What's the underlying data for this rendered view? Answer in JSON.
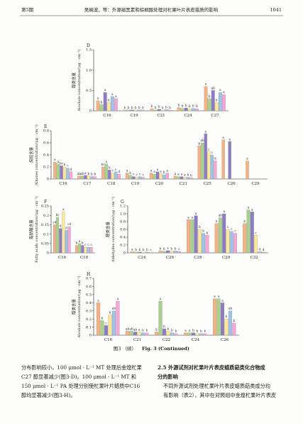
{
  "header": {
    "left": "第5期",
    "center": "吴娴波，等：外源褪黑素和棕榈酸处理对杧果叶片表皮蜡质的影响",
    "right": "1041"
  },
  "chart_data": [
    {
      "type": "bar",
      "panel": "D",
      "ylabel_cn": "醇类含量",
      "ylabel_en": "Alcohols concentration/(μg · cm⁻²)",
      "categories": [
        "C16",
        "C19",
        "C21",
        "C24",
        "C27"
      ],
      "ylim": [
        0,
        1.5
      ],
      "yticks": [
        0,
        0.5,
        {
          "value": 1,
          "label": "1.0"
        },
        1.5
      ],
      "series": [
        {
          "color": "#f4b183",
          "values": [
            0.25,
            0.02,
            0.05,
            0.08,
            0.6
          ],
          "labels": [
            "a",
            "b",
            "b",
            "b",
            "a"
          ]
        },
        {
          "color": "#a9d18e",
          "values": [
            0.15,
            0.02,
            0.02,
            0.06,
            0.3
          ],
          "labels": [
            "b",
            "b",
            "b",
            "b",
            "b"
          ]
        },
        {
          "color": "#8e7cc3",
          "values": [
            0.45,
            0.02,
            0.04,
            0.07,
            0.5
          ],
          "labels": [
            "a",
            "b",
            "b",
            "b",
            "ab"
          ]
        },
        {
          "color": "#ffe699",
          "values": [
            0.2,
            0.02,
            0.02,
            0.05,
            0.2
          ],
          "labels": [
            "b",
            "b",
            "b",
            "b",
            "b"
          ]
        },
        {
          "color": "#9dc3e6",
          "values": [
            0.35,
            0.02,
            0.03,
            0.06,
            0.45
          ],
          "labels": [
            "a",
            "b",
            "b",
            "b",
            "a"
          ]
        },
        {
          "color": "#f4a6d7",
          "values": [
            0.3,
            0.02,
            0.02,
            0.05,
            0.4
          ],
          "labels": [
            "a",
            "b",
            "b",
            "b",
            "a"
          ]
        }
      ]
    },
    {
      "type": "bar",
      "panel": "E",
      "ylabel_cn": "烷烃含量",
      "ylabel_en": "Alkanes concentration/(μg · cm⁻²)",
      "categories": [
        "C16",
        "C17",
        "C18",
        "C19",
        "C20",
        "C21",
        "C25",
        "C26",
        "C29"
      ],
      "ylim": [
        0,
        0.8
      ],
      "yticks": [
        0,
        0.2,
        0.4,
        0.6,
        0.8
      ],
      "series": [
        {
          "color": "#f4b183",
          "values": [
            0.28,
            0.05,
            0.2,
            0.1,
            0.1,
            0.05,
            0.55,
            0.65,
            0.3
          ],
          "labels": [
            "a",
            "ab",
            "bc",
            "a",
            "a",
            "a",
            "b",
            "a",
            "a"
          ]
        },
        {
          "color": "#a9d18e",
          "values": [
            0.25,
            0.05,
            0.25,
            0.06,
            0.08,
            0.04,
            0.6,
            0,
            0
          ],
          "labels": [
            "a",
            "ab",
            "a",
            "b",
            "a",
            "a",
            "ab",
            null,
            null
          ]
        },
        {
          "color": "#8e7cc3",
          "values": [
            0.22,
            0.06,
            0.15,
            0.04,
            0.12,
            0.04,
            0.75,
            0.62,
            0
          ],
          "labels": [
            "bc",
            "a",
            "b",
            "c",
            "a",
            "a",
            "a",
            "a",
            null
          ]
        },
        {
          "color": "#ffe699",
          "values": [
            0.2,
            0.05,
            0.1,
            0.03,
            0.09,
            0.03,
            0.45,
            0,
            0
          ],
          "labels": [
            "b",
            "b",
            "c",
            "c",
            "a",
            "a",
            "c",
            null,
            null
          ]
        },
        {
          "color": "#9dc3e6",
          "values": [
            0.18,
            0.04,
            0.12,
            0.04,
            0.07,
            0.03,
            0.4,
            0,
            0
          ],
          "labels": [
            "c",
            "b",
            "c",
            "c",
            "b",
            "b",
            "c",
            null,
            null
          ]
        },
        {
          "color": "#f4a6d7",
          "values": [
            0.12,
            0.04,
            0.08,
            0.03,
            0.1,
            0.02,
            0.3,
            0,
            0
          ],
          "labels": [
            "d",
            "b",
            "d",
            "c",
            "a",
            "b",
            "d",
            null,
            null
          ]
        }
      ]
    },
    {
      "type": "bar",
      "panel": "F",
      "ylabel_cn": "脂肪酸含量",
      "ylabel_en": "Fatty acids concentration/(μg · cm⁻²)",
      "categories": [
        "C16",
        "C18"
      ],
      "ylim": [
        0,
        0.25
      ],
      "yticks": [
        0,
        0.05,
        0.1,
        0.15,
        0.2,
        0.25
      ],
      "series": [
        {
          "color": "#f4b183",
          "values": [
            0.15,
            0.04
          ],
          "labels": [
            "cd",
            "b"
          ]
        },
        {
          "color": "#a9d18e",
          "values": [
            0.19,
            0.05
          ],
          "labels": [
            "bc",
            "a"
          ]
        },
        {
          "color": "#8e7cc3",
          "values": [
            0.13,
            0.04
          ],
          "labels": [
            "d",
            "b"
          ]
        },
        {
          "color": "#ffe699",
          "values": [
            0.22,
            0.03
          ],
          "labels": [
            "a",
            "c"
          ]
        },
        {
          "color": "#9dc3e6",
          "values": [
            0.12,
            0.03
          ],
          "labels": [
            "d",
            "c"
          ]
        },
        {
          "color": "#f4a6d7",
          "values": [
            0.14,
            0.03
          ],
          "labels": [
            "cd",
            "c"
          ]
        }
      ]
    },
    {
      "type": "bar",
      "panel": "G",
      "ylabel_cn": "醛类含量",
      "ylabel_en": "Aldehydes concentration/(μg · cm⁻²)",
      "categories": [
        "C24",
        "C26",
        "C28",
        "C29",
        "C32"
      ],
      "ylim": [
        0,
        1.2
      ],
      "yticks": [
        0,
        0.2,
        0.4,
        0.6,
        0.8,
        {
          "value": 1,
          "label": "1.0"
        },
        1.2
      ],
      "series": [
        {
          "color": "#f4b183",
          "values": [
            0.03,
            0.05,
            0.85,
            0.75,
            0.75
          ],
          "labels": [
            "a",
            "b",
            "a",
            "b",
            "b"
          ]
        },
        {
          "color": "#a9d18e",
          "values": [
            0.02,
            0.04,
            0.85,
            0.9,
            1.1
          ],
          "labels": [
            "b",
            "b",
            "a",
            "ab",
            "a"
          ]
        },
        {
          "color": "#8e7cc3",
          "values": [
            0.02,
            0.06,
            0.95,
            1.0,
            1.05
          ],
          "labels": [
            "b",
            "a",
            "a",
            "a",
            "a"
          ]
        },
        {
          "color": "#ffe699",
          "values": [
            0.02,
            0.05,
            0.6,
            0.6,
            0.45
          ],
          "labels": [
            "b",
            "b",
            "b",
            "c",
            "c"
          ]
        },
        {
          "color": "#9dc3e6",
          "values": [
            0.02,
            0.05,
            0.5,
            0.55,
            0.03
          ],
          "labels": [
            "b",
            "b",
            "b",
            "c",
            "d"
          ]
        },
        {
          "color": "#f4a6d7",
          "values": [
            0.01,
            0.04,
            0.45,
            0.5,
            0.02
          ],
          "labels": [
            "c",
            "c",
            "b",
            "c",
            "d"
          ]
        }
      ]
    },
    {
      "type": "bar",
      "panel": "H",
      "ylabel_cn": "醇类含量",
      "ylabel_en": "Alcohols concentration/(μg · cm⁻²)",
      "categories": [
        "C16",
        "C21",
        "C22",
        "C24",
        "C26"
      ],
      "ylim": [
        0,
        0.7
      ],
      "yticks": [
        0,
        0.1,
        0.2,
        0.3,
        0.4,
        0.5,
        0.6,
        0.7
      ],
      "series": [
        {
          "color": "#f4b183",
          "values": [
            0.4,
            0.05,
            0.04,
            0.03,
            0.45
          ],
          "labels": [
            "a",
            "ab",
            "b",
            "a",
            "a"
          ]
        },
        {
          "color": "#a9d18e",
          "values": [
            0.18,
            0.05,
            0.42,
            0.03,
            0.45
          ],
          "labels": [
            "b",
            "ab",
            "a",
            "a",
            "a"
          ]
        },
        {
          "color": "#8e7cc3",
          "values": [
            0.12,
            0.04,
            0.08,
            0.03,
            0.4
          ],
          "labels": [
            "c",
            "ab",
            "b",
            "b",
            "a"
          ]
        },
        {
          "color": "#ffe699",
          "values": [
            0.25,
            0.04,
            0.05,
            0.02,
            0.2
          ],
          "labels": [
            "b",
            "a",
            "b",
            "b",
            "b"
          ]
        },
        {
          "color": "#9dc3e6",
          "values": [
            0.3,
            0.03,
            0.03,
            0.02,
            0.3
          ],
          "labels": [
            "ab",
            "b",
            "b",
            "b",
            "ab"
          ]
        },
        {
          "color": "#f4a6d7",
          "values": [
            0.42,
            0.03,
            0.02,
            0.02,
            0.15
          ],
          "labels": [
            "a",
            "b",
            "b",
            "b",
            "b"
          ]
        }
      ]
    }
  ],
  "caption": {
    "cn": "图3 （续）",
    "en": "Fig. 3   (Continued)"
  },
  "left_column": [
    "分布影响较小，100 μmol · L⁻¹ MT 处理后金煌杧果",
    "C27 醇显著减少(图3-D)。100 μmol · L⁻¹ MT 和",
    "150 μmol · L⁻¹ PA 处理分别使杧果叶片蜡质中C16",
    "醇均显著减少(图3-H)。"
  ],
  "right_column": {
    "heading": [
      "2.5  外源试剂对杧果叶片表皮蜡质萜类化合物成",
      "分的影响"
    ],
    "lines": [
      "不同外源试剂处理杧果叶片表皮蜡质萜类成分均",
      "有影响（表2），其中在对照组中金煌杧果叶片表皮"
    ]
  }
}
